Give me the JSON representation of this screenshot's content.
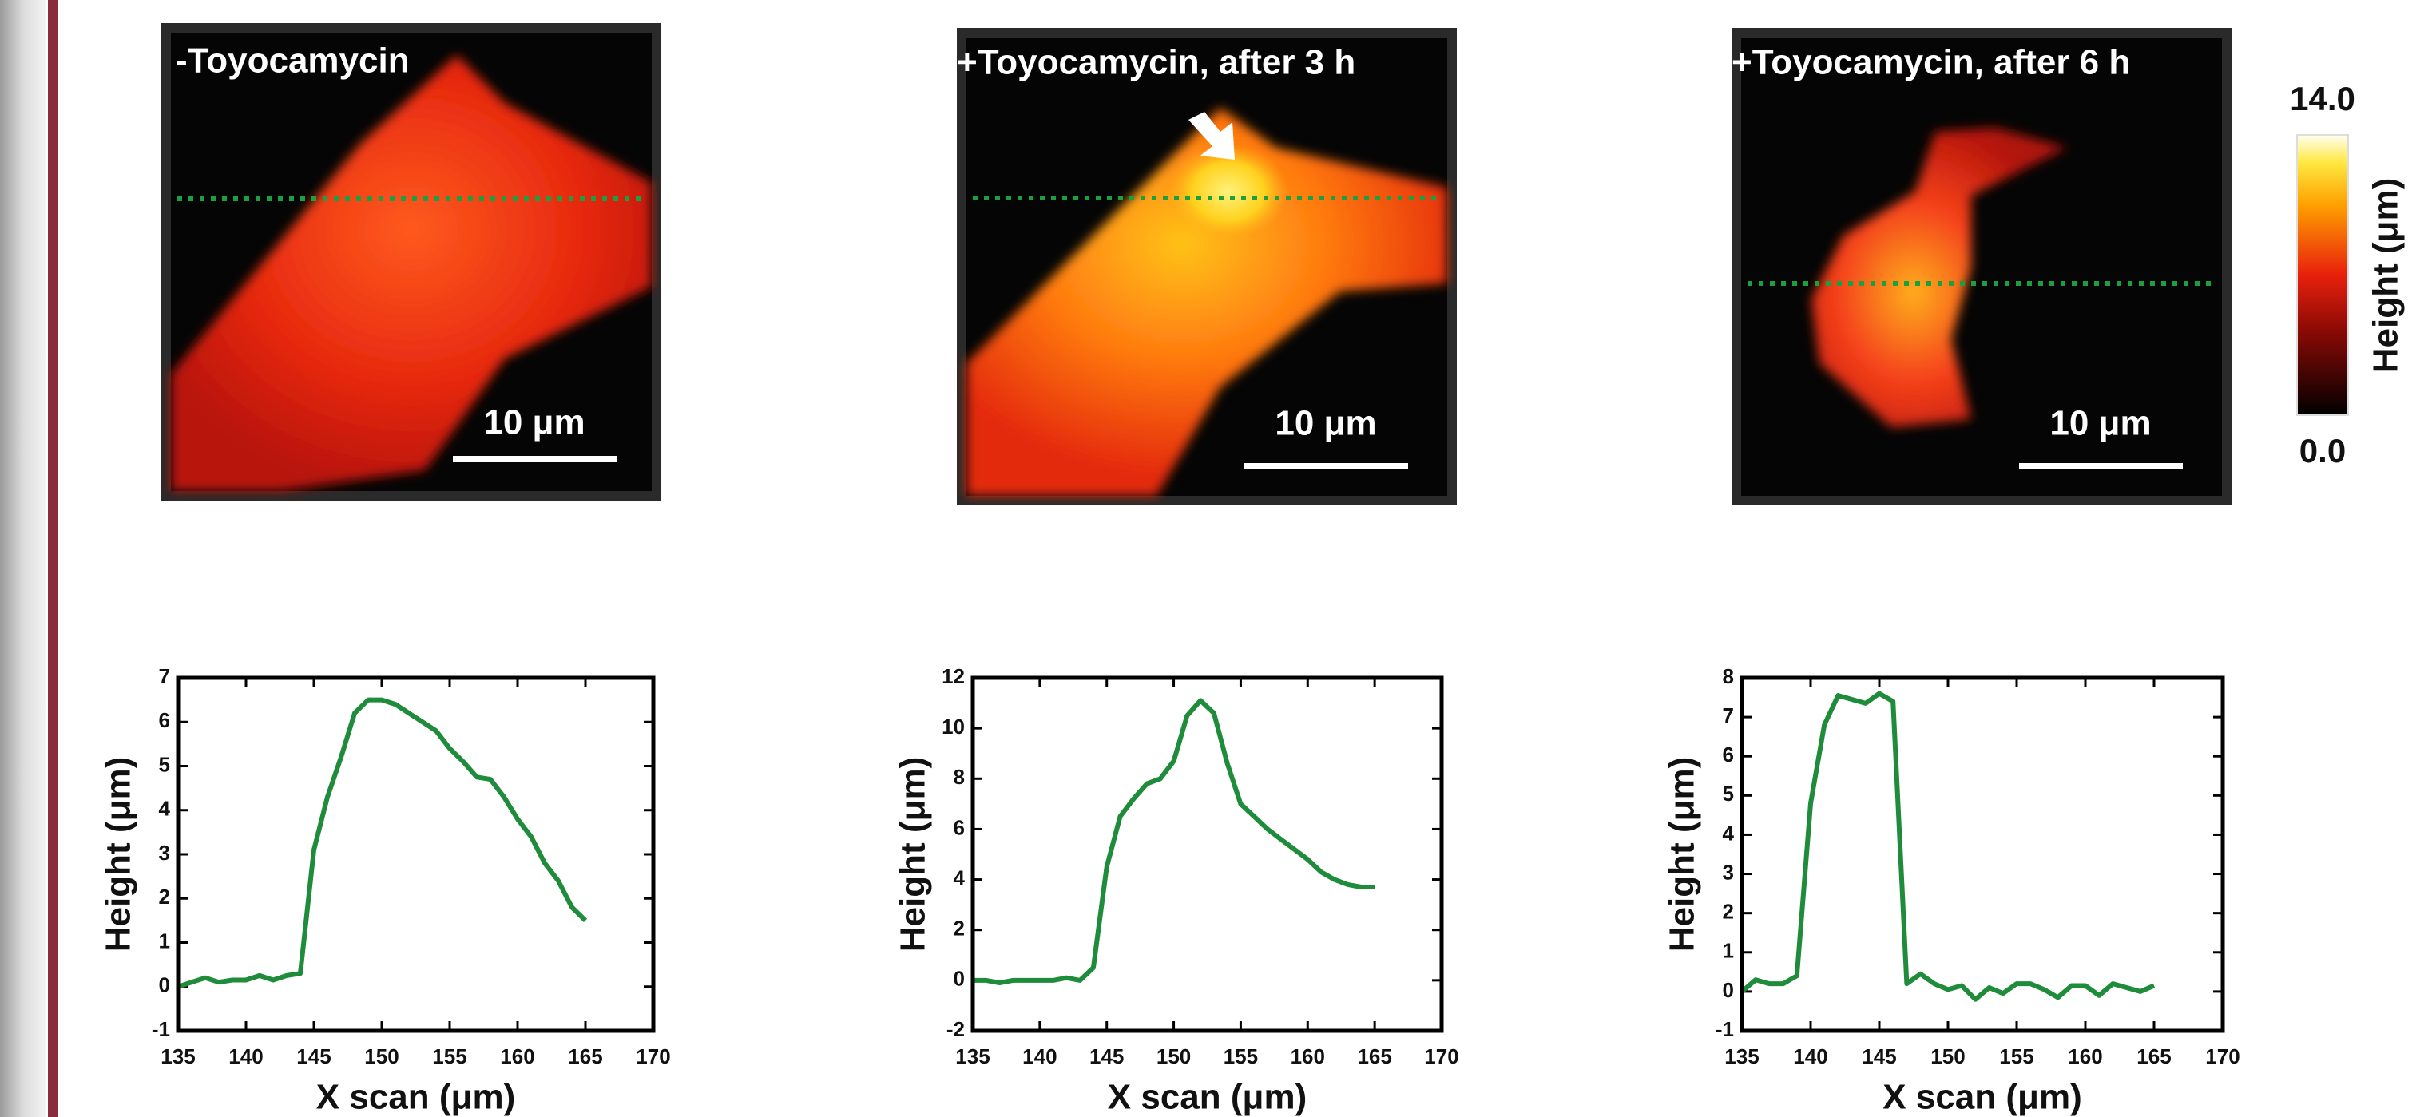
{
  "images": [
    {
      "label": "-Toyocamycin",
      "scale_bar": "10 μm"
    },
    {
      "label": "+Toyocamycin, after 3 h",
      "scale_bar": "10 μm"
    },
    {
      "label": "+Toyocamycin, after 6 h",
      "scale_bar": "10 μm"
    }
  ],
  "colorbar": {
    "label": "Height (μm)",
    "ticks": [
      {
        "value": 14,
        "label": "14.0"
      },
      {
        "value": 0,
        "label": "0.0"
      }
    ]
  },
  "chart_data": [
    {
      "type": "line",
      "x_label": "X scan (μm)",
      "y_label": "Height (μm)",
      "color": "#1e8c3a",
      "x": [
        135,
        136,
        137,
        138,
        139,
        140,
        141,
        142,
        143,
        144,
        145,
        146,
        147,
        148,
        149,
        150,
        151,
        152,
        153,
        154,
        155,
        156,
        157,
        158,
        159,
        160,
        161,
        162,
        163,
        164,
        165
      ],
      "values": [
        0,
        0.1,
        0.2,
        0.1,
        0.15,
        0.15,
        0.25,
        0.15,
        0.25,
        0.3,
        3.1,
        4.3,
        5.2,
        6.2,
        6.5,
        6.5,
        6.4,
        6.2,
        6.0,
        5.8,
        5.4,
        5.1,
        4.75,
        4.7,
        4.3,
        3.8,
        3.4,
        2.8,
        2.4,
        1.8,
        1.5
      ],
      "xlim": [
        135,
        170
      ],
      "xticks": [
        135,
        140,
        145,
        150,
        155,
        160,
        165,
        170
      ],
      "ylim": [
        -1,
        7
      ],
      "yticks": [
        -1,
        0,
        1,
        2,
        3,
        4,
        5,
        6,
        7
      ]
    },
    {
      "type": "line",
      "x_label": "X scan (μm)",
      "y_label": "Height (μm)",
      "color": "#1e8c3a",
      "x": [
        135,
        136,
        137,
        138,
        139,
        140,
        141,
        142,
        143,
        144,
        145,
        146,
        147,
        148,
        149,
        150,
        151,
        152,
        153,
        154,
        155,
        156,
        157,
        158,
        159,
        160,
        161,
        162,
        163,
        164,
        165
      ],
      "values": [
        0,
        0,
        -0.1,
        0,
        0,
        0,
        0,
        0.1,
        0,
        0.5,
        4.5,
        6.5,
        7.2,
        7.8,
        8.0,
        8.7,
        10.5,
        11.1,
        10.6,
        8.6,
        7.0,
        6.5,
        6.0,
        5.6,
        5.2,
        4.8,
        4.3,
        4.0,
        3.8,
        3.7,
        3.7
      ],
      "xlim": [
        135,
        170
      ],
      "xticks": [
        135,
        140,
        145,
        150,
        155,
        160,
        165,
        170
      ],
      "ylim": [
        -2,
        12
      ],
      "yticks": [
        -2,
        0,
        2,
        4,
        6,
        8,
        10,
        12
      ]
    },
    {
      "type": "line",
      "x_label": "X scan (μm)",
      "y_label": "Height (μm)",
      "color": "#1e8c3a",
      "x": [
        135,
        136,
        137,
        138,
        139,
        140,
        141,
        142,
        143,
        144,
        145,
        146,
        147,
        148,
        149,
        150,
        151,
        152,
        153,
        154,
        155,
        156,
        157,
        158,
        159,
        160,
        161,
        162,
        163,
        164,
        165
      ],
      "values": [
        0,
        0.3,
        0.2,
        0.2,
        0.4,
        4.8,
        6.8,
        7.55,
        7.45,
        7.35,
        7.6,
        7.4,
        0.2,
        0.45,
        0.2,
        0.05,
        0.15,
        -0.2,
        0.1,
        -0.05,
        0.2,
        0.2,
        0.05,
        -0.15,
        0.15,
        0.15,
        -0.1,
        0.2,
        0.1,
        0,
        0.15
      ],
      "xlim": [
        135,
        170
      ],
      "xticks": [
        135,
        140,
        145,
        150,
        155,
        160,
        165,
        170
      ],
      "ylim": [
        -1,
        8
      ],
      "yticks": [
        -1,
        0,
        1,
        2,
        3,
        4,
        5,
        6,
        7,
        8
      ]
    }
  ]
}
